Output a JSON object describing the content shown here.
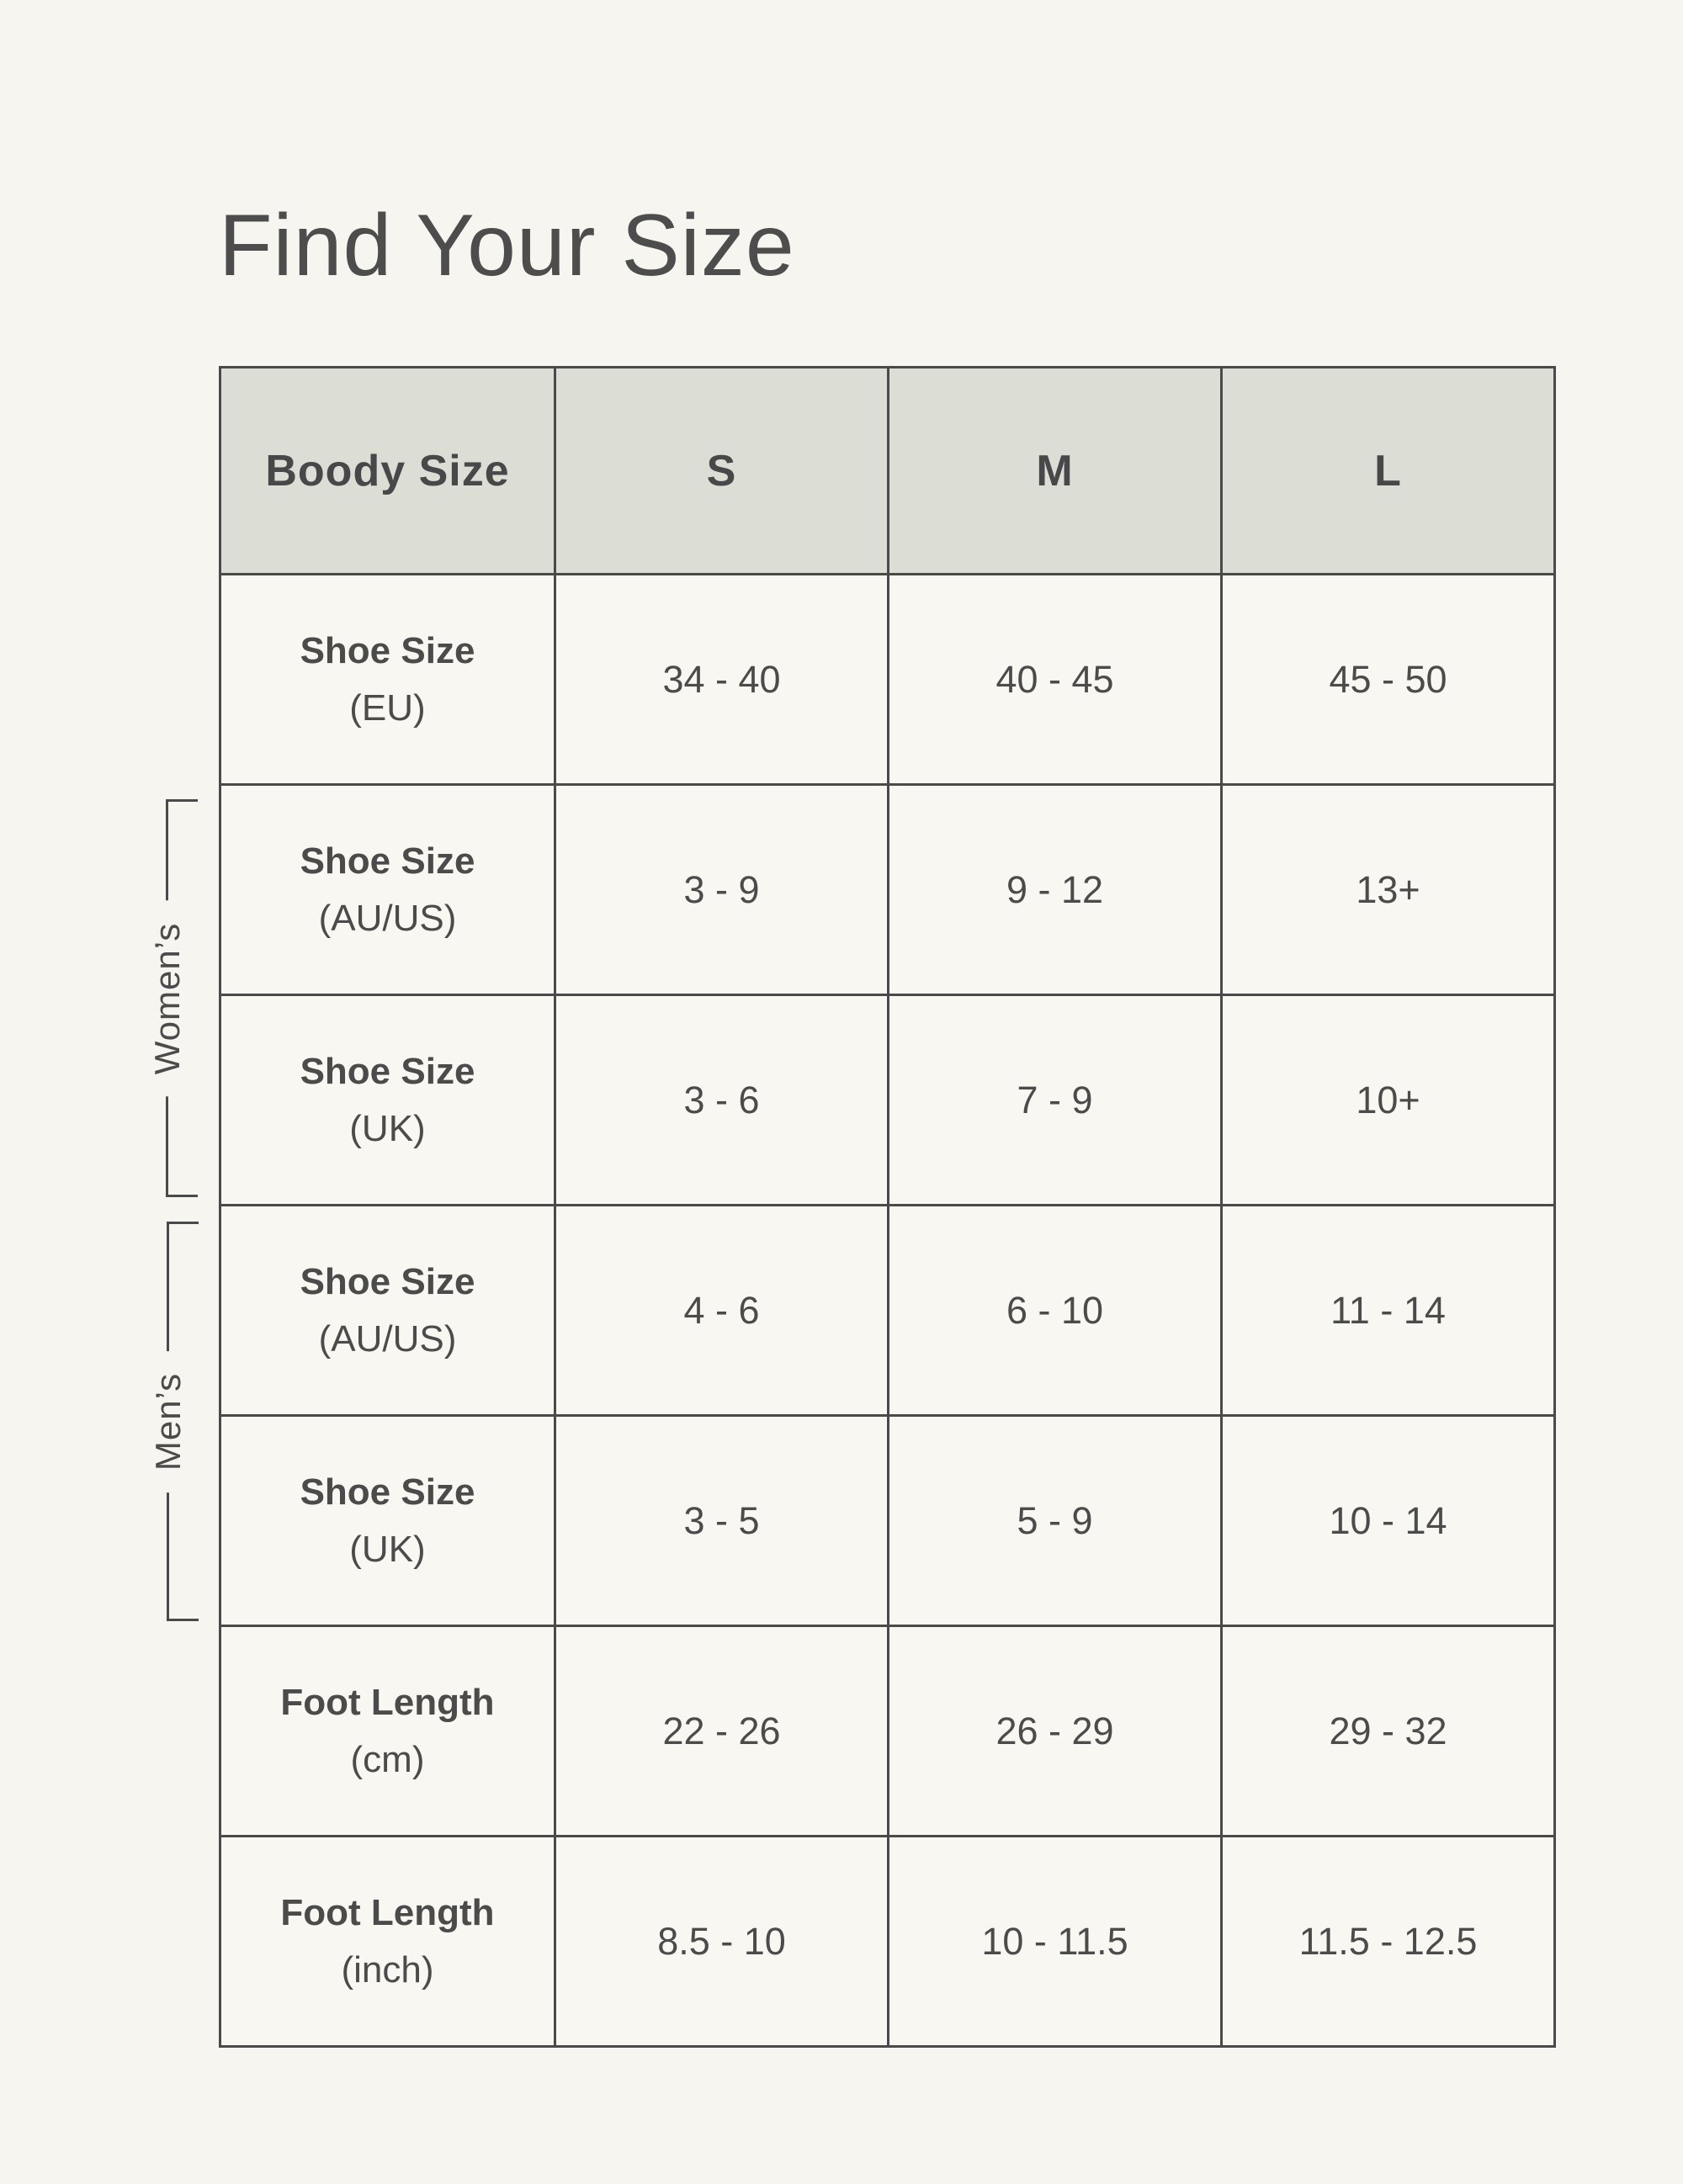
{
  "page": {
    "title": "Find Your Size",
    "background": "#f6f5ef"
  },
  "colors": {
    "header_background": "#dcddd4",
    "cell_background": "#f8f7f1",
    "border": "#4a4a4a",
    "text": "#4b4b4b"
  },
  "groups": {
    "womens_label": "Women’s",
    "mens_label": "Men’s"
  },
  "table": {
    "header": {
      "label": "Boody Size",
      "sizes": [
        "S",
        "M",
        "L"
      ]
    },
    "rows": [
      {
        "label": "Shoe Size",
        "unit": "(EU)",
        "values": [
          "34 - 40",
          "40 - 45",
          "45 - 50"
        ]
      },
      {
        "label": "Shoe Size",
        "unit": "(AU/US)",
        "values": [
          "3 - 9",
          "9 - 12",
          "13+"
        ]
      },
      {
        "label": "Shoe Size",
        "unit": "(UK)",
        "values": [
          "3 - 6",
          "7 - 9",
          "10+"
        ]
      },
      {
        "label": "Shoe Size",
        "unit": "(AU/US)",
        "values": [
          "4 - 6",
          "6 - 10",
          "11 - 14"
        ]
      },
      {
        "label": "Shoe Size",
        "unit": "(UK)",
        "values": [
          "3 - 5",
          "5 - 9",
          "10 - 14"
        ]
      },
      {
        "label": "Foot Length",
        "unit": "(cm)",
        "values": [
          "22 - 26",
          "26 - 29",
          "29 - 32"
        ]
      },
      {
        "label": "Foot Length",
        "unit": "(inch)",
        "values": [
          "8.5 - 10",
          "10 - 11.5",
          "11.5 - 12.5"
        ]
      }
    ]
  }
}
